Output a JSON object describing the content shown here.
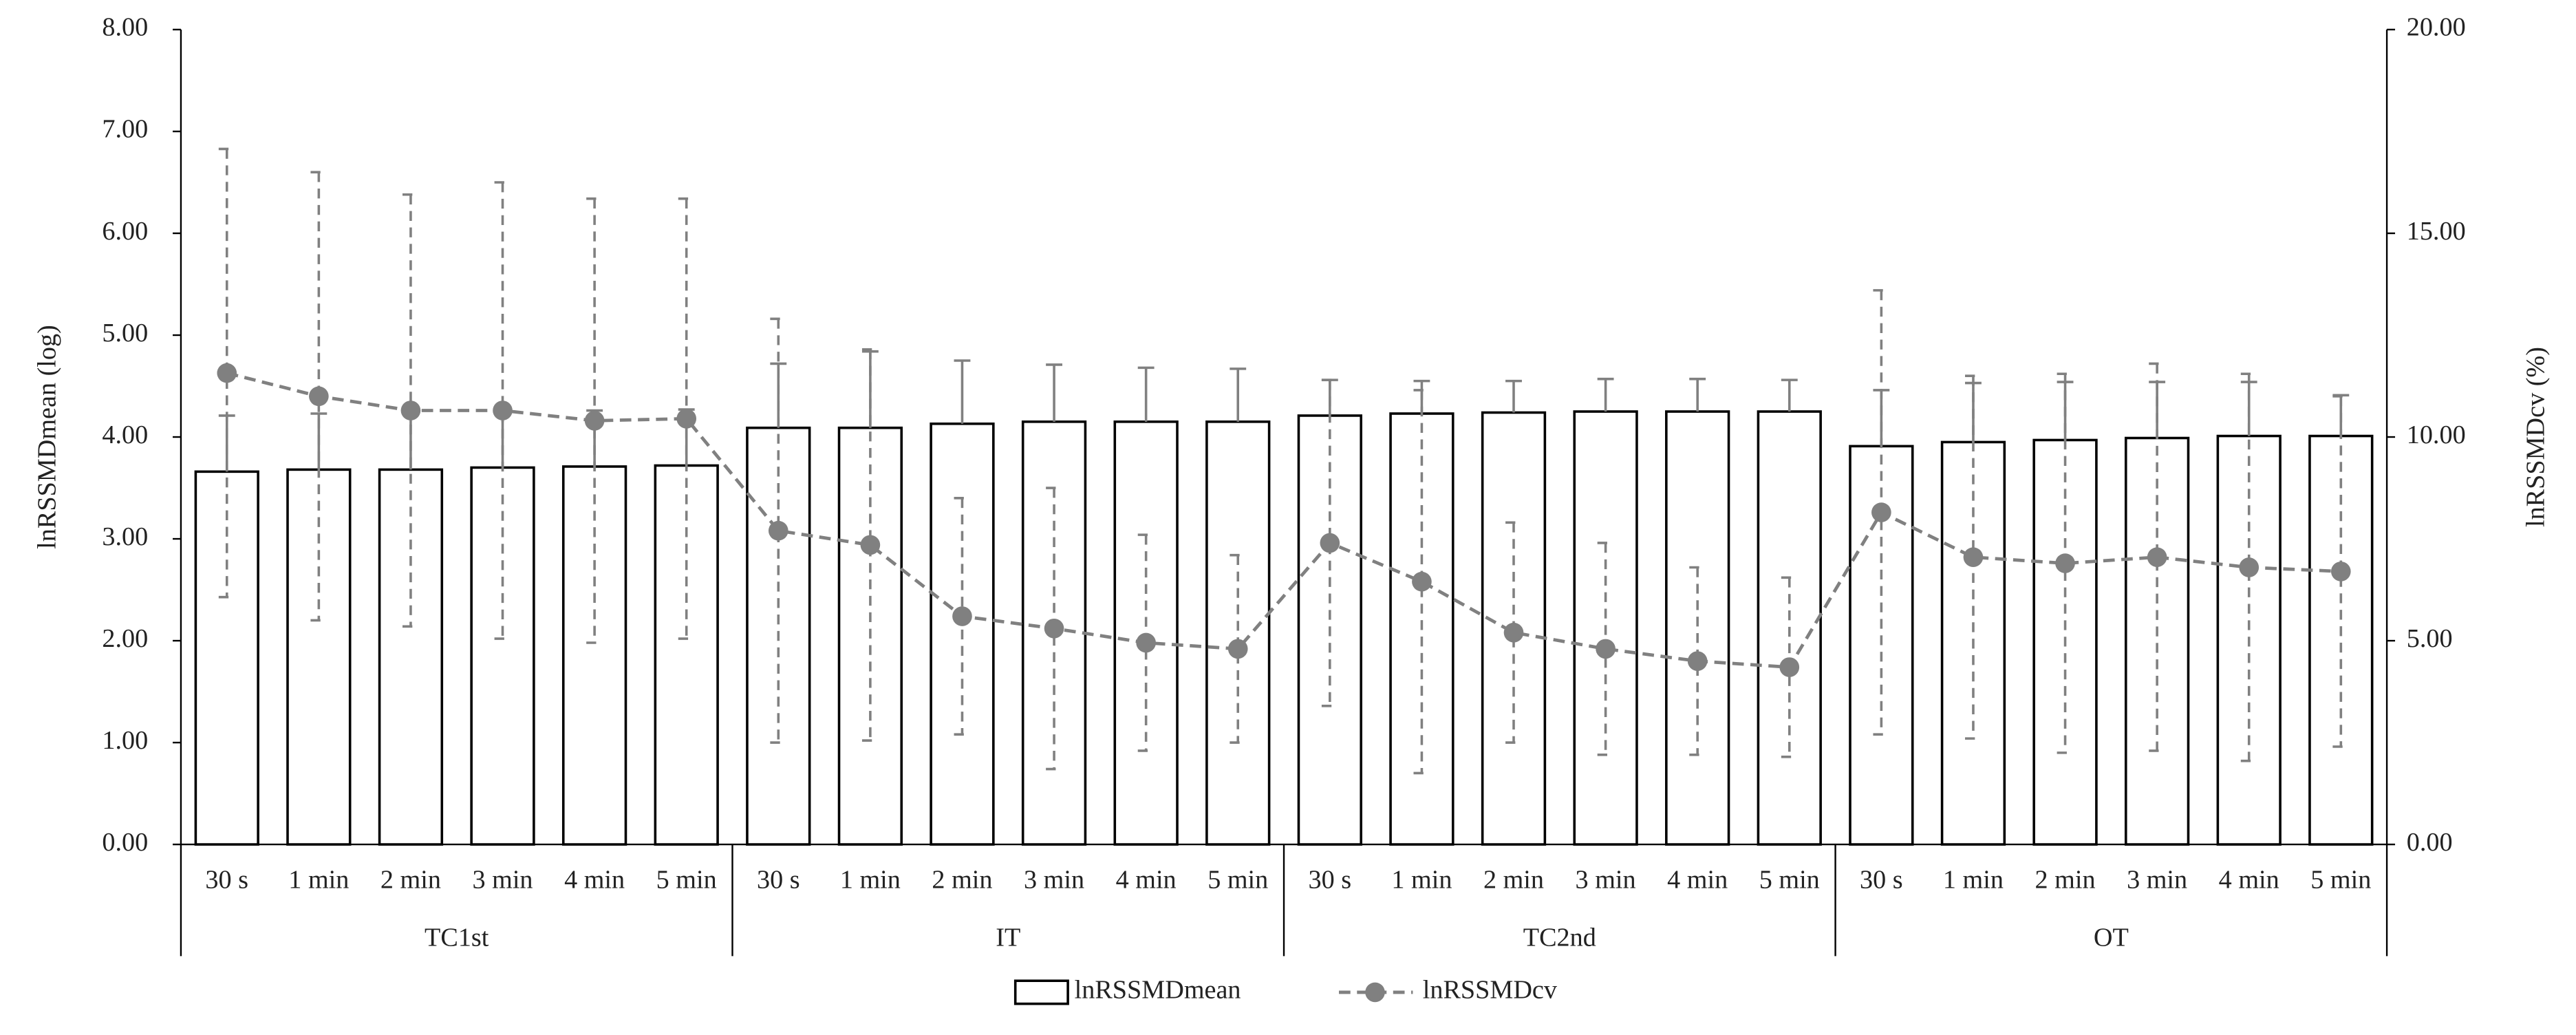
{
  "chart_data": {
    "type": "bar",
    "y_label": "lnRSSMDmean (log)",
    "y2_label": "lnRSSMDcv (%)",
    "categories": [
      "30 s",
      "1 min",
      "2 min",
      "3 min",
      "4 min",
      "5 min",
      "30 s",
      "1 min",
      "2 min",
      "3 min",
      "4 min",
      "5 min",
      "30 s",
      "1 min",
      "2 min",
      "3 min",
      "4 min",
      "5 min",
      "30 s",
      "1 min",
      "2 min",
      "3 min",
      "4 min",
      "5 min"
    ],
    "groups": [
      "TC1st",
      "IT",
      "TC2nd",
      "OT"
    ],
    "series": [
      {
        "name": "lnRSSMDmean",
        "type": "bar",
        "color": "#000000",
        "fill": "#ffffff",
        "error_color": "#808080",
        "values": [
          3.66,
          3.68,
          3.68,
          3.7,
          3.71,
          3.72,
          4.09,
          4.09,
          4.13,
          4.15,
          4.15,
          4.15,
          4.21,
          4.23,
          4.24,
          4.25,
          4.25,
          4.25,
          3.91,
          3.95,
          3.97,
          3.99,
          4.01,
          4.01
        ],
        "errors": [
          0.55,
          0.55,
          0.55,
          0.55,
          0.55,
          0.55,
          0.63,
          0.75,
          0.62,
          0.56,
          0.53,
          0.52,
          0.35,
          0.32,
          0.31,
          0.32,
          0.32,
          0.31,
          0.55,
          0.58,
          0.57,
          0.55,
          0.53,
          0.4
        ]
      },
      {
        "name": "lnRSSMDcv",
        "type": "line",
        "axis": "y2",
        "color": "#808080",
        "values": [
          11.57,
          11.0,
          10.65,
          10.65,
          10.4,
          10.45,
          7.7,
          7.35,
          5.6,
          5.3,
          4.95,
          4.8,
          7.4,
          6.45,
          5.2,
          4.8,
          4.5,
          4.35,
          8.15,
          7.05,
          6.9,
          7.05,
          6.8,
          6.7
        ],
        "errors": [
          5.5,
          5.5,
          5.3,
          5.6,
          5.45,
          5.4,
          5.2,
          4.8,
          2.9,
          3.45,
          2.65,
          2.3,
          4.0,
          4.7,
          2.7,
          2.6,
          2.3,
          2.2,
          5.45,
          4.45,
          4.65,
          4.75,
          4.75,
          4.3
        ]
      }
    ],
    "ylim": [
      0,
      8
    ],
    "yticks": [
      {
        "value": 0,
        "label": "0.00"
      },
      {
        "value": 1,
        "label": "1.00"
      },
      {
        "value": 2,
        "label": "2.00"
      },
      {
        "value": 3,
        "label": "3.00"
      },
      {
        "value": 4,
        "label": "4.00"
      },
      {
        "value": 5,
        "label": "5.00"
      },
      {
        "value": 6,
        "label": "6.00"
      },
      {
        "value": 7,
        "label": "7.00"
      },
      {
        "value": 8,
        "label": "8.00"
      }
    ],
    "y2lim": [
      0,
      20
    ],
    "y2ticks": [
      {
        "value": 0,
        "label": "0.00"
      },
      {
        "value": 5,
        "label": "5.00"
      },
      {
        "value": 10,
        "label": "10.00"
      },
      {
        "value": 15,
        "label": "15.00"
      },
      {
        "value": 20,
        "label": "20.00"
      }
    ],
    "legend": "bottom"
  }
}
